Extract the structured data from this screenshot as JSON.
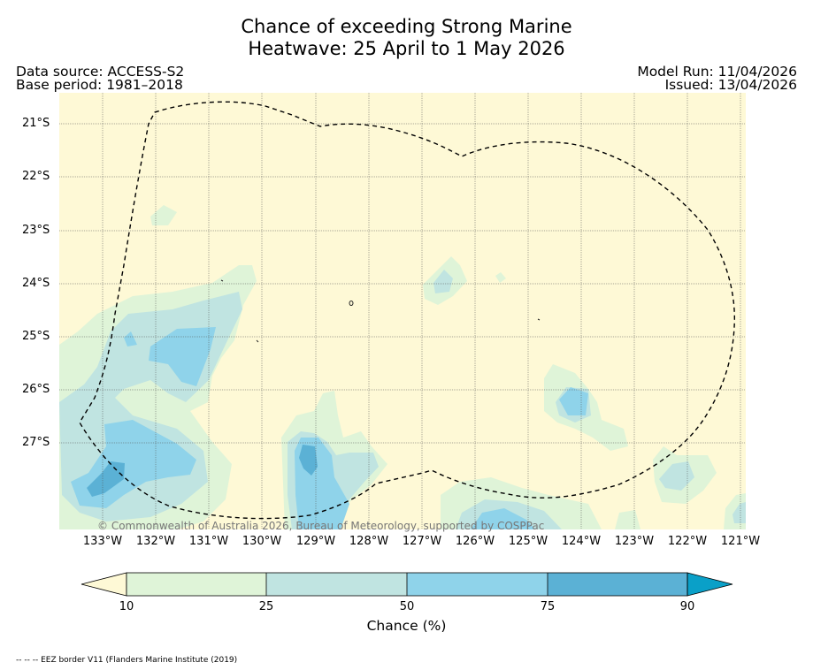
{
  "header": {
    "title_line1": "Chance of exceeding Strong Marine",
    "title_line2": "Heatwave: 25 April to 1 May 2026",
    "data_source": "Data source: ACCESS-S2",
    "base_period": "Base period: 1981–2018",
    "model_run": "Model Run: 11/04/2026",
    "issued": "Issued: 13/04/2026"
  },
  "map": {
    "lat_labels": [
      "21°S",
      "22°S",
      "23°S",
      "24°S",
      "25°S",
      "26°S",
      "27°S"
    ],
    "lon_labels": [
      "133°W",
      "132°W",
      "131°W",
      "130°W",
      "129°W",
      "128°W",
      "127°W",
      "126°W",
      "125°W",
      "124°W",
      "123°W",
      "122°W",
      "121°W"
    ],
    "copyright": "© Commonwealth of Australia 2026, Bureau of Meteorology, supported by COSPPac",
    "background_color": "#fef9d6"
  },
  "colorbar": {
    "ticks": [
      "10",
      "25",
      "50",
      "75",
      "90"
    ],
    "label": "Chance (%)",
    "colors": [
      "#fef9d6",
      "#dff4d8",
      "#c0e4e1",
      "#8fd3ea",
      "#5bb1d5",
      "#0aa0c8"
    ]
  },
  "footer": {
    "legend_text": "-- -- -- EEZ border V11 (Flanders Marine Institute (2019)"
  }
}
